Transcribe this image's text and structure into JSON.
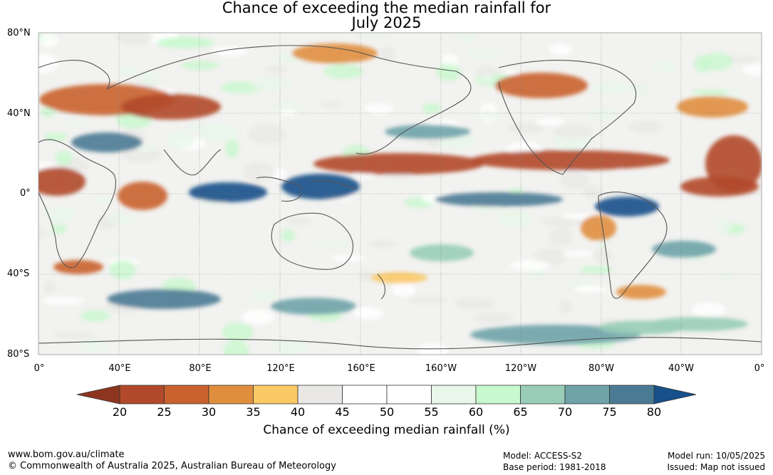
{
  "title": {
    "line1": "Chance of exceeding the median rainfall for",
    "line2": "July 2025"
  },
  "lat_labels": [
    "80°N",
    "40°N",
    "0°",
    "40°S",
    "80°S"
  ],
  "lon_labels": [
    "0°",
    "40°E",
    "80°E",
    "120°E",
    "160°E",
    "160°W",
    "120°W",
    "80°W",
    "40°W",
    "0°"
  ],
  "colorbar": {
    "ticks": [
      "20",
      "25",
      "30",
      "35",
      "40",
      "45",
      "50",
      "55",
      "60",
      "65",
      "70",
      "75",
      "80"
    ],
    "colors": [
      "#b1492a",
      "#c9622f",
      "#e08e3e",
      "#fbc966",
      "#e9e8e6",
      "#ffffff",
      "#ffffff",
      "#e9f6ea",
      "#c8f8cd",
      "#99cdb8",
      "#6ea3a8",
      "#4b7a94"
    ],
    "low_color": "#8e3520",
    "high_color": "#17508a",
    "label": "Chance of exceeding median rainfall (%)"
  },
  "footer": {
    "url": "www.bom.gov.au/climate",
    "copyright": "© Commonwealth of Australia 2025, Australian Bureau of Meteorology",
    "model": "Model: ACCESS-S2",
    "base_period": "Base period: 1981-2018",
    "model_run": "Model run: 10/05/2025",
    "issued": "Issued: Map not issued"
  }
}
